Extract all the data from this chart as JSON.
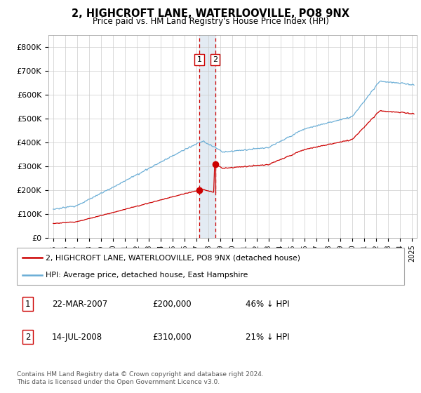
{
  "title": "2, HIGHCROFT LANE, WATERLOOVILLE, PO8 9NX",
  "subtitle": "Price paid vs. HM Land Registry's House Price Index (HPI)",
  "ylim": [
    0,
    850000
  ],
  "yticks": [
    0,
    100000,
    200000,
    300000,
    400000,
    500000,
    600000,
    700000,
    800000
  ],
  "ytick_labels": [
    "£0",
    "£100K",
    "£200K",
    "£300K",
    "£400K",
    "£500K",
    "£600K",
    "£700K",
    "£800K"
  ],
  "hpi_color": "#6baed6",
  "price_color": "#cc0000",
  "sale1_yr_float": 2007.21,
  "sale1_price": 200000,
  "sale2_yr_float": 2008.54,
  "sale2_price": 310000,
  "legend_entries": [
    "2, HIGHCROFT LANE, WATERLOOVILLE, PO8 9NX (detached house)",
    "HPI: Average price, detached house, East Hampshire"
  ],
  "table_rows": [
    [
      "1",
      "22-MAR-2007",
      "£200,000",
      "46% ↓ HPI"
    ],
    [
      "2",
      "14-JUL-2008",
      "£310,000",
      "21% ↓ HPI"
    ]
  ],
  "footnote": "Contains HM Land Registry data © Crown copyright and database right 2024.\nThis data is licensed under the Open Government Licence v3.0.",
  "shaded_color": "#dce6f1",
  "grid_color": "#cccccc"
}
